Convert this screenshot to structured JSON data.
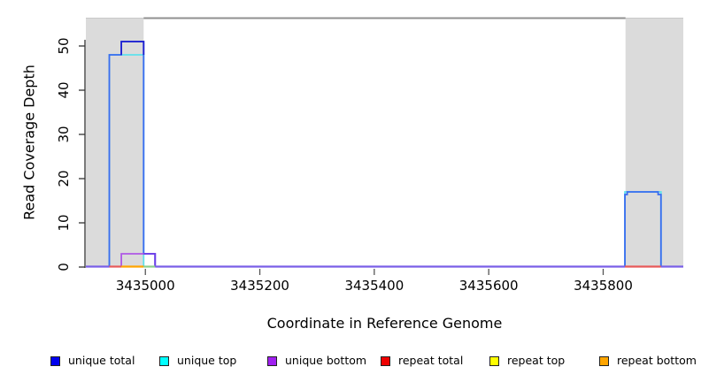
{
  "chart_data": {
    "type": "line",
    "subtype": "step-coverage",
    "title": "",
    "xlabel": "Coordinate in Reference Genome",
    "ylabel": "Read Coverage Depth",
    "xlim": [
      3434896,
      3435940
    ],
    "ylim": [
      0,
      56.4
    ],
    "grid": false,
    "legend_position": "bottom",
    "xticks": [
      3435000,
      3435200,
      3435400,
      3435600,
      3435800
    ],
    "xtick_labels": [
      "3435000",
      "3435200",
      "3435400",
      "3435600",
      "3435800"
    ],
    "yticks": [
      0,
      10,
      20,
      30,
      40,
      50
    ],
    "ytick_labels": [
      "0",
      "10",
      "20",
      "30",
      "40",
      "50"
    ],
    "shaded_regions": [
      {
        "start": 3434896,
        "end": 3434997,
        "color": "#DBDBDB"
      },
      {
        "start": 3435839,
        "end": 3435940,
        "color": "#DBDBDB"
      }
    ],
    "top_boundary_line": {
      "from": 3434997,
      "to": 3435839,
      "color": "#909090"
    },
    "series": [
      {
        "name": "unique total",
        "color": "#0000FF",
        "draw_color": "#3B6CEF",
        "steps": [
          [
            3434937,
            3434958,
            48
          ],
          [
            3434958,
            3434997,
            51
          ],
          [
            3434997,
            3435017,
            3
          ],
          [
            3435838,
            3435842,
            16.4
          ],
          [
            3435842,
            3435896,
            17
          ],
          [
            3435896,
            3435901,
            16.4
          ]
        ]
      },
      {
        "name": "unique top",
        "color": "#00FFFF",
        "draw_color": "#5FE2EC",
        "steps": [
          [
            3434937,
            3434997,
            48
          ],
          [
            3435838,
            3435901,
            17
          ]
        ]
      },
      {
        "name": "unique bottom",
        "color": "#A020F0",
        "draw_color": "#AE58E6",
        "steps": [
          [
            3434958,
            3435017,
            3
          ]
        ]
      },
      {
        "name": "repeat total",
        "color": "#FF0000",
        "draw_color": "#E85A5A",
        "steps": []
      },
      {
        "name": "repeat top",
        "color": "#FFFF00",
        "draw_color": "#FFFF00",
        "steps": []
      },
      {
        "name": "repeat bottom",
        "color": "#FFA500",
        "draw_color": "#FFA500",
        "steps": []
      }
    ],
    "overlap_dark_blue": {
      "from": 3434958,
      "to": 3434997,
      "value": 51,
      "base": 48,
      "color": "#2020CF"
    },
    "overlap_blue_violet": {
      "from": 3434997,
      "to": 3435017,
      "value": 3,
      "color": "#6B40E8"
    },
    "baseline_segments": [
      {
        "from": 3434896,
        "to": 3434937,
        "color": "#7A5FE8"
      },
      {
        "from": 3434937,
        "to": 3434958,
        "color": "#E85A5A"
      },
      {
        "from": 3434958,
        "to": 3434997,
        "color": "#FFA500"
      },
      {
        "from": 3434997,
        "to": 3435017,
        "color": "#8CCF8C"
      },
      {
        "from": 3435017,
        "to": 3435838,
        "color": "#7A5FE8"
      },
      {
        "from": 3435838,
        "to": 3435901,
        "color": "#E85A5A"
      },
      {
        "from": 3435901,
        "to": 3435940,
        "color": "#7A5FE8"
      }
    ]
  },
  "legend": {
    "items": [
      {
        "label": "unique total",
        "color": "#0000EE"
      },
      {
        "label": "unique top",
        "color": "#00FFFF"
      },
      {
        "label": "unique bottom",
        "color": "#A020F0"
      },
      {
        "label": "repeat total",
        "color": "#EE0000"
      },
      {
        "label": "repeat top",
        "color": "#FFFF00"
      },
      {
        "label": "repeat bottom",
        "color": "#FFA500"
      }
    ]
  },
  "colors": {
    "axis": "#333333",
    "tick": "#555555",
    "text": "#000000",
    "shade_top_edge": "#C8C8C8"
  }
}
